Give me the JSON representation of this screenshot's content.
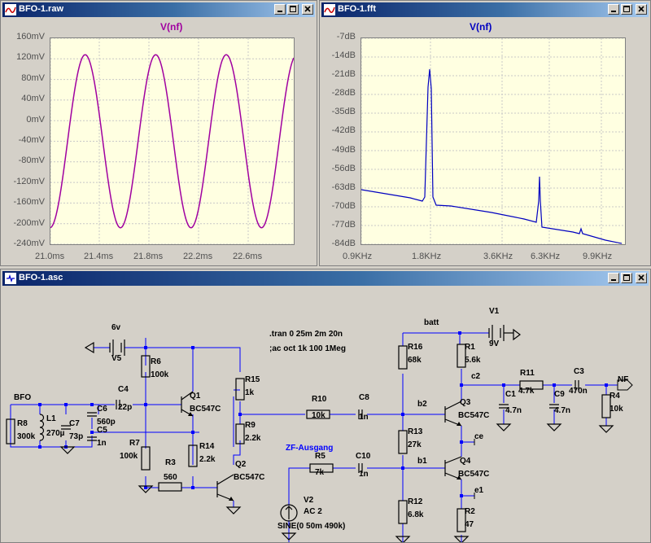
{
  "windows": {
    "raw": {
      "title": "BFO-1.raw",
      "trace": "V(nf)",
      "yticks": [
        "160mV",
        "120mV",
        "80mV",
        "40mV",
        "0mV",
        "-40mV",
        "-80mV",
        "-120mV",
        "-160mV",
        "-200mV",
        "-240mV"
      ],
      "xticks": [
        "21.0ms",
        "21.4ms",
        "21.8ms",
        "22.2ms",
        "22.6ms"
      ]
    },
    "fft": {
      "title": "BFO-1.fft",
      "trace": "V(nf)",
      "yticks": [
        "-7dB",
        "-14dB",
        "-21dB",
        "-28dB",
        "-35dB",
        "-42dB",
        "-49dB",
        "-56dB",
        "-63dB",
        "-70dB",
        "-77dB",
        "-84dB"
      ],
      "xticks": [
        "0.9KHz",
        "1.8KHz",
        "3.6KHz",
        "6.3KHz",
        "9.9KHz"
      ]
    },
    "schematic": {
      "title": "BFO-1.asc",
      "directives": [
        ".tran 0 25m 2m 20n",
        ";ac oct 1k 100 1Meg"
      ],
      "labels": [
        {
          "id": "bfo",
          "text": "BFO"
        },
        {
          "id": "r8",
          "text": "R8"
        },
        {
          "id": "r8v",
          "text": "300k"
        },
        {
          "id": "l1",
          "text": "L1"
        },
        {
          "id": "l1v",
          "text": "270µ"
        },
        {
          "id": "c7",
          "text": "C7"
        },
        {
          "id": "c7v",
          "text": "73p"
        },
        {
          "id": "c6",
          "text": "C6"
        },
        {
          "id": "c6v",
          "text": "560p"
        },
        {
          "id": "c5",
          "text": "C5"
        },
        {
          "id": "c5v",
          "text": "1n"
        },
        {
          "id": "c4",
          "text": "C4"
        },
        {
          "id": "c4v",
          "text": "22p"
        },
        {
          "id": "v5v",
          "text": "6v"
        },
        {
          "id": "v5",
          "text": "V5"
        },
        {
          "id": "r6",
          "text": "R6"
        },
        {
          "id": "r6v",
          "text": "100k"
        },
        {
          "id": "r7",
          "text": "R7"
        },
        {
          "id": "r7v",
          "text": "100k"
        },
        {
          "id": "q1",
          "text": "Q1"
        },
        {
          "id": "q1v",
          "text": "BC547C"
        },
        {
          "id": "r3",
          "text": "R3"
        },
        {
          "id": "r3v",
          "text": "560"
        },
        {
          "id": "r14",
          "text": "R14"
        },
        {
          "id": "r14v",
          "text": "2.2k"
        },
        {
          "id": "q2",
          "text": "Q2"
        },
        {
          "id": "q2v",
          "text": "BC547C"
        },
        {
          "id": "r15",
          "text": "R15"
        },
        {
          "id": "r15v",
          "text": "1k"
        },
        {
          "id": "r9",
          "text": "R9"
        },
        {
          "id": "r9v",
          "text": "2.2k"
        },
        {
          "id": "r10",
          "text": "R10"
        },
        {
          "id": "r10v",
          "text": "10k"
        },
        {
          "id": "c8",
          "text": "C8"
        },
        {
          "id": "c8v",
          "text": "1n"
        },
        {
          "id": "zf",
          "text": "ZF-Ausgang"
        },
        {
          "id": "r5",
          "text": "R5"
        },
        {
          "id": "r5v",
          "text": "7k"
        },
        {
          "id": "c10",
          "text": "C10"
        },
        {
          "id": "c10v",
          "text": "1n"
        },
        {
          "id": "v2",
          "text": "V2"
        },
        {
          "id": "v2ac",
          "text": "AC 2"
        },
        {
          "id": "v2sine",
          "text": "SINE(0 50m 490k)"
        },
        {
          "id": "batt",
          "text": "batt"
        },
        {
          "id": "v1",
          "text": "V1"
        },
        {
          "id": "v1v",
          "text": "9V"
        },
        {
          "id": "r16",
          "text": "R16"
        },
        {
          "id": "r16v",
          "text": "68k"
        },
        {
          "id": "r13",
          "text": "R13"
        },
        {
          "id": "r13v",
          "text": "27k"
        },
        {
          "id": "r12",
          "text": "R12"
        },
        {
          "id": "r12v",
          "text": "6.8k"
        },
        {
          "id": "r1",
          "text": "R1"
        },
        {
          "id": "r1v",
          "text": "5.6k"
        },
        {
          "id": "c2",
          "text": "c2"
        },
        {
          "id": "b2",
          "text": "b2"
        },
        {
          "id": "b1",
          "text": "b1"
        },
        {
          "id": "q3",
          "text": "Q3"
        },
        {
          "id": "q3v",
          "text": "BC547C"
        },
        {
          "id": "ce",
          "text": "ce"
        },
        {
          "id": "q4",
          "text": "Q4"
        },
        {
          "id": "q4v",
          "text": "BC547C"
        },
        {
          "id": "e1",
          "text": "e1"
        },
        {
          "id": "r2",
          "text": "R2"
        },
        {
          "id": "r2v",
          "text": "47"
        },
        {
          "id": "c1",
          "text": "C1"
        },
        {
          "id": "c1v",
          "text": "4.7n"
        },
        {
          "id": "r11",
          "text": "R11"
        },
        {
          "id": "r11v",
          "text": "4.7k"
        },
        {
          "id": "c9",
          "text": "C9"
        },
        {
          "id": "c9v",
          "text": "4.7n"
        },
        {
          "id": "c3",
          "text": "C3"
        },
        {
          "id": "c3v",
          "text": "470n"
        },
        {
          "id": "r4",
          "text": "R4"
        },
        {
          "id": "r4v",
          "text": "10k"
        },
        {
          "id": "nf",
          "text": "NF"
        }
      ]
    }
  },
  "colors": {
    "raw_trace": "#a000a0",
    "fft_trace": "#0000c0",
    "wire": "#0000ff",
    "component": "#000000",
    "plot_bg": "#ffffe1",
    "title_grad_start": "#0a246a",
    "title_grad_end": "#a6caf0"
  }
}
